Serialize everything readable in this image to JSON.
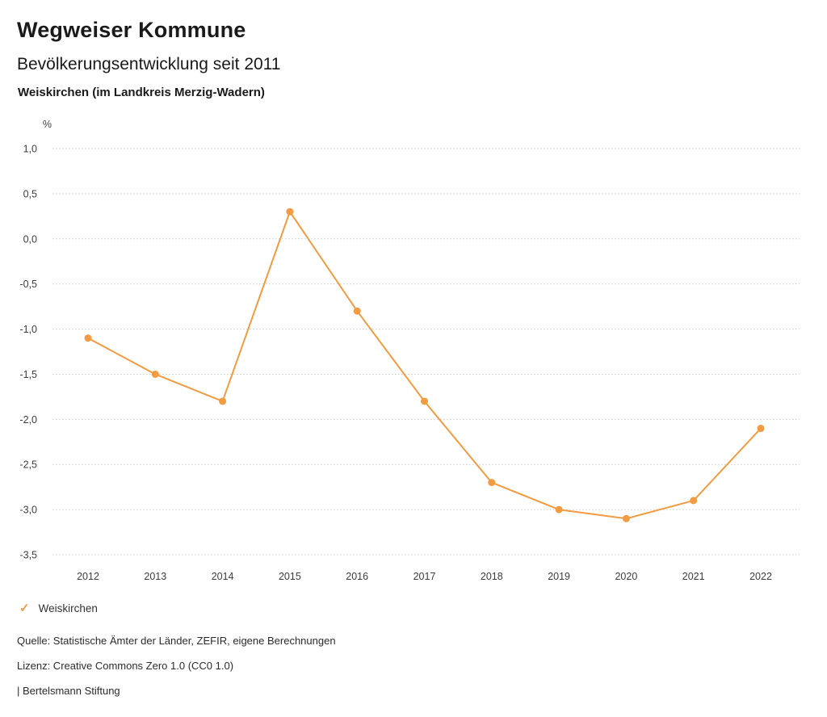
{
  "header": {
    "title": "Wegweiser Kommune",
    "subtitle": "Bevölkerungsentwicklung seit 2011",
    "region": "Weiskirchen (im Landkreis Merzig-Wadern)"
  },
  "colors": {
    "accent": "#F29B40",
    "grid": "#c9c9c9",
    "text": "#1a1a1a"
  },
  "chart_data": {
    "type": "line",
    "title": "Bevölkerungsentwicklung seit 2011",
    "subtitle": "Weiskirchen (im Landkreis Merzig-Wadern)",
    "unit_label": "%",
    "xlabel": "",
    "ylabel": "%",
    "categories": [
      "2012",
      "2013",
      "2014",
      "2015",
      "2016",
      "2017",
      "2018",
      "2019",
      "2020",
      "2021",
      "2022"
    ],
    "series": [
      {
        "name": "Weiskirchen",
        "color": "#F29B40",
        "values": [
          -1.1,
          -1.5,
          -1.8,
          0.3,
          -0.8,
          -1.8,
          -2.7,
          -3.0,
          -3.1,
          -2.9,
          -2.1
        ]
      }
    ],
    "ylim": [
      -3.5,
      1.0
    ],
    "ytick_step": 0.5,
    "yticks": [
      {
        "value": 1.0,
        "label": "1,0"
      },
      {
        "value": 0.5,
        "label": "0,5"
      },
      {
        "value": 0.0,
        "label": "0,0"
      },
      {
        "value": -0.5,
        "label": "-0,5"
      },
      {
        "value": -1.0,
        "label": "-1,0"
      },
      {
        "value": -1.5,
        "label": "-1,5"
      },
      {
        "value": -2.0,
        "label": "-2,0"
      },
      {
        "value": -2.5,
        "label": "-2,5"
      },
      {
        "value": -3.0,
        "label": "-3,0"
      },
      {
        "value": -3.5,
        "label": "-3,5"
      }
    ],
    "grid": "dotted-horizontal",
    "legend_position": "bottom-left"
  },
  "legend": {
    "items": [
      {
        "label": "Weiskirchen",
        "color": "#F29B40",
        "marker": "check"
      }
    ],
    "check_glyph": "✓"
  },
  "footer": {
    "source": "Quelle: Statistische Ämter der Länder, ZEFIR, eigene Berechnungen",
    "license": "Lizenz: Creative Commons Zero 1.0 (CC0 1.0)",
    "attribution": "| Bertelsmann Stiftung"
  }
}
